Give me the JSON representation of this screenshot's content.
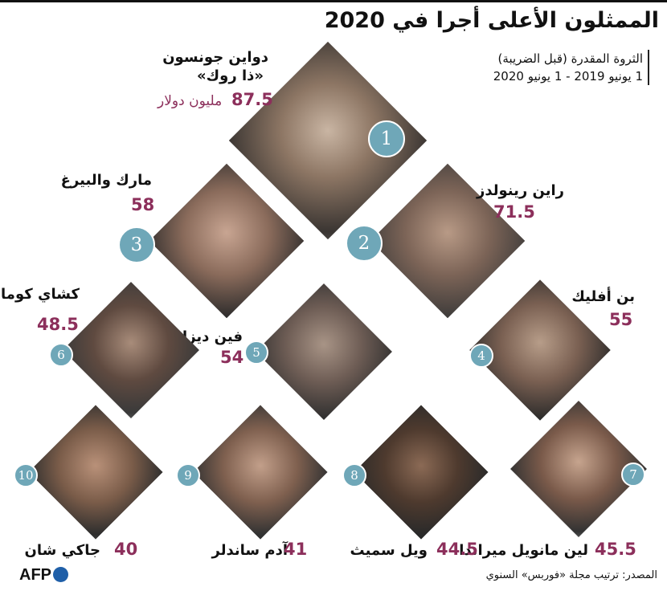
{
  "title": "الممثلون الأعلى أجرا في 2020",
  "subtitle": {
    "line1": "الثروة المقدرة (قبل الضريبة)",
    "line2": "1 يونيو 2019 - 1 يونيو 2020"
  },
  "actors": [
    {
      "rank": "1",
      "name": "دواين جونسون",
      "nickname": "«ذا روك»",
      "value": "87.5",
      "unit": "مليون دولار"
    },
    {
      "rank": "2",
      "name": "راين رينولدز",
      "value": "71.5"
    },
    {
      "rank": "3",
      "name": "مارك والبيرغ",
      "value": "58"
    },
    {
      "rank": "4",
      "name": "بن أفليك",
      "value": "55"
    },
    {
      "rank": "5",
      "name": "فين ديزل",
      "value": "54"
    },
    {
      "rank": "6",
      "name": "كشاي كومار",
      "value": "48.5"
    },
    {
      "rank": "7",
      "name": "لين مانويل ميراندا",
      "value": "45.5"
    },
    {
      "rank": "8",
      "name": "ويل سميث",
      "value": "44.5"
    },
    {
      "rank": "9",
      "name": "آدم ساندلر",
      "value": "41"
    },
    {
      "rank": "10",
      "name": "جاكي شان",
      "value": "40"
    }
  ],
  "source": "المصدر: ترتيب مجلة «فوربس» السنوي",
  "logo": "AFP"
}
